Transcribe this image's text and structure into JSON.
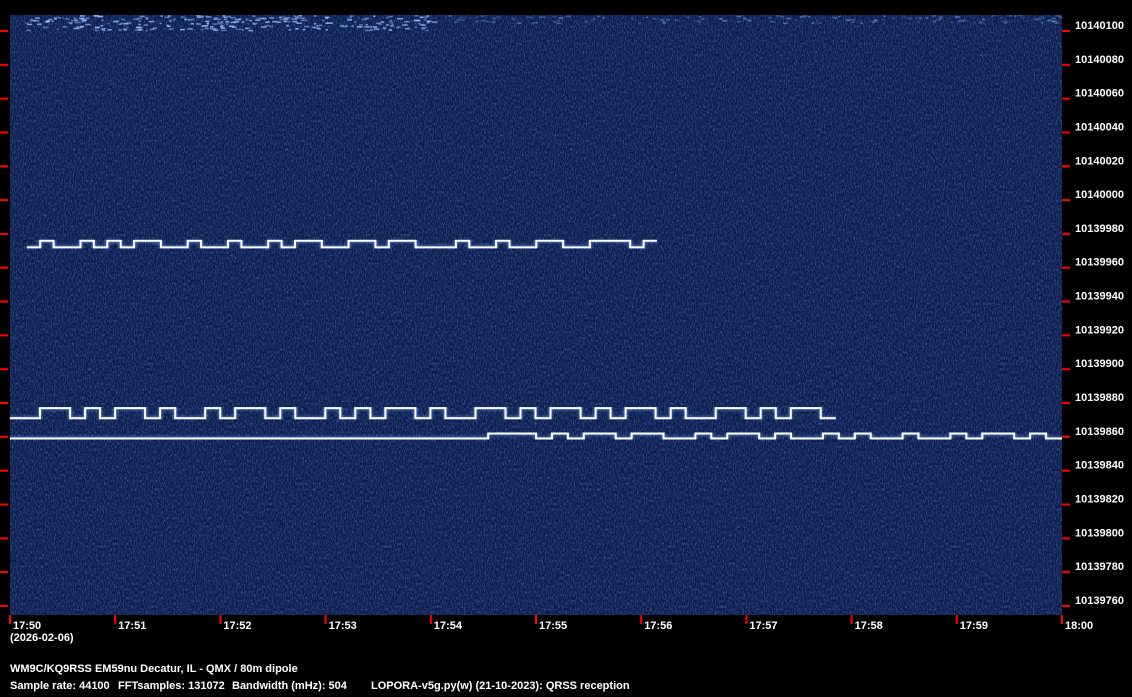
{
  "chart_data": {
    "type": "heatmap",
    "subtype": "QRSS spectrogram waterfall",
    "colors": {
      "background": "#0b1c4c",
      "signal": "#ffffff",
      "tick": "#ff0000"
    },
    "x_ticks": [
      "17:50",
      "17:51",
      "17:52",
      "17:53",
      "17:54",
      "17:55",
      "17:56",
      "17:57",
      "17:58",
      "17:59",
      "18:00"
    ],
    "x_range_minutes": [
      0,
      10
    ],
    "date_label": "(2026-02-06)",
    "y_ticks": [
      10140100,
      10140080,
      10140060,
      10140040,
      10140020,
      10140000,
      10139980,
      10139960,
      10139940,
      10139920,
      10139900,
      10139880,
      10139860,
      10139840,
      10139820,
      10139800,
      10139780,
      10139760
    ],
    "y_range_hz": [
      10139752,
      10140110
    ],
    "signals": [
      {
        "start_min": 0.16,
        "end_min": 6.15,
        "freq_low": 10139972,
        "freq_high": 10139976,
        "pattern": "01001010110010010010110011011000100100110011101"
      },
      {
        "start_min": 0.0,
        "end_min": 7.85,
        "freq_low": 10139871,
        "freq_high": 10139877,
        "pattern": "0011010110100101101001010110100110101101011010011010110"
      },
      {
        "start_min": 0.0,
        "end_min": 10.0,
        "freq_low": 10139859,
        "freq_high": 10139862,
        "pattern": "000000000000000000000000000000111010110110010110100101001001011010"
      }
    ]
  },
  "footer": {
    "station": "WM9C/KQ9RSS EM59nu Decatur, IL - QMX / 80m dipole",
    "sample_rate": "Sample rate: 44100",
    "fft_samples": "FFTsamples: 131072",
    "bandwidth": "Bandwidth (mHz): 504",
    "software": "LOPORA-v5g.py(w) (21-10-2023): QRSS reception"
  }
}
